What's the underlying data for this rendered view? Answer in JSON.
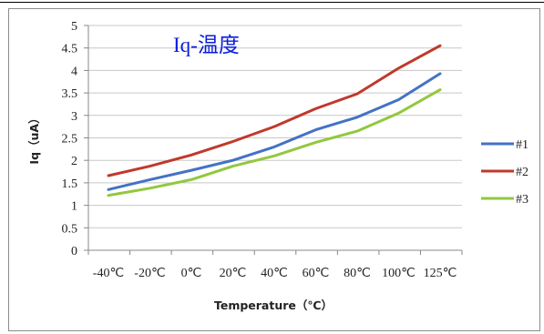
{
  "chart_data": {
    "type": "line",
    "title": "Iq-温度",
    "xlabel": "Temperature（℃）",
    "ylabel": "Iq（uA）",
    "categories": [
      "-40℃",
      "-20℃",
      "0℃",
      "20℃",
      "40℃",
      "60℃",
      "80℃",
      "100℃",
      "125℃"
    ],
    "ylim": [
      0,
      5
    ],
    "yticks": [
      "0",
      "0.5",
      "1",
      "1.5",
      "2",
      "2.5",
      "3",
      "3.5",
      "4",
      "4.5",
      "5"
    ],
    "grid": true,
    "legend_position": "right",
    "series": [
      {
        "name": "#1",
        "color": "#4472c4",
        "values": [
          1.35,
          1.57,
          1.78,
          2.0,
          2.3,
          2.68,
          2.96,
          3.35,
          3.93
        ]
      },
      {
        "name": "#2",
        "color": "#c0392b",
        "values": [
          1.66,
          1.87,
          2.12,
          2.42,
          2.75,
          3.15,
          3.48,
          4.05,
          4.55
        ]
      },
      {
        "name": "#3",
        "color": "#92c83e",
        "values": [
          1.22,
          1.38,
          1.57,
          1.87,
          2.1,
          2.4,
          2.65,
          3.05,
          3.57
        ]
      }
    ]
  }
}
